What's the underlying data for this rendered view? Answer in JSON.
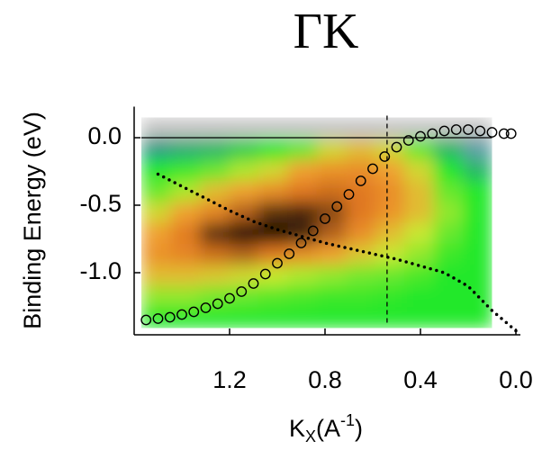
{
  "chart_data": {
    "type": "heatmap",
    "title": "ΓK",
    "x_label": {
      "main": "K",
      "sub": "X",
      "open": "(A",
      "sup": "-1",
      "close": ")"
    },
    "y_label": "Binding Energy (eV)",
    "xlim": [
      1.6,
      0.0
    ],
    "ylim": [
      -1.46,
      0.23
    ],
    "xticks": [
      1.2,
      0.8,
      0.4,
      {
        "value": 0.0,
        "label": "0.0"
      }
    ],
    "yticks": [
      {
        "value": 0.0,
        "label": "0.0"
      },
      -0.5,
      {
        "value": -1.0,
        "label": "-1.0"
      }
    ],
    "heatmap": {
      "x_range": [
        1.57,
        0.1
      ],
      "y_range": [
        0.15,
        -1.41
      ],
      "colormap": [
        {
          "value": 0,
          "color": "#c4c4c4"
        },
        {
          "value": 0.12,
          "color": "#2a8f9a"
        },
        {
          "value": 0.3,
          "color": "#22e82a"
        },
        {
          "value": 0.42,
          "color": "#c8e830"
        },
        {
          "value": 0.55,
          "color": "#f0a030"
        },
        {
          "value": 0.7,
          "color": "#e07820"
        },
        {
          "value": 0.85,
          "color": "#5a3010"
        },
        {
          "value": 1,
          "color": "#000000"
        }
      ],
      "intensity": [
        [
          0,
          0,
          0,
          0,
          0,
          0,
          0,
          0,
          0,
          0,
          0,
          0
        ],
        [
          0.15,
          0.18,
          0.2,
          0.25,
          0.3,
          0.35,
          0.45,
          0.5,
          0.45,
          0.35,
          0.2,
          0.08
        ],
        [
          0.3,
          0.32,
          0.35,
          0.4,
          0.45,
          0.55,
          0.6,
          0.62,
          0.55,
          0.45,
          0.3,
          0.2
        ],
        [
          0.35,
          0.4,
          0.5,
          0.55,
          0.62,
          0.7,
          0.72,
          0.7,
          0.62,
          0.5,
          0.35,
          0.3
        ],
        [
          0.45,
          0.55,
          0.65,
          0.75,
          0.85,
          0.88,
          0.8,
          0.7,
          0.6,
          0.5,
          0.38,
          0.3
        ],
        [
          0.55,
          0.68,
          0.85,
          0.95,
          0.97,
          0.9,
          0.75,
          0.62,
          0.5,
          0.42,
          0.35,
          0.3
        ],
        [
          0.6,
          0.65,
          0.72,
          0.75,
          0.7,
          0.62,
          0.55,
          0.48,
          0.42,
          0.38,
          0.32,
          0.3
        ],
        [
          0.5,
          0.5,
          0.48,
          0.45,
          0.42,
          0.4,
          0.38,
          0.36,
          0.35,
          0.33,
          0.3,
          0.3
        ],
        [
          0.38,
          0.38,
          0.36,
          0.35,
          0.34,
          0.33,
          0.32,
          0.32,
          0.31,
          0.3,
          0.3,
          0.3
        ],
        [
          0.3,
          0.3,
          0.3,
          0.3,
          0.3,
          0.3,
          0.3,
          0.3,
          0.3,
          0.3,
          0.3,
          0.3
        ]
      ]
    },
    "scatter": {
      "color": "#000000",
      "x": [
        1.55,
        1.5,
        1.45,
        1.4,
        1.35,
        1.3,
        1.25,
        1.2,
        1.15,
        1.1,
        1.05,
        1.0,
        0.95,
        0.9,
        0.85,
        0.8,
        0.75,
        0.7,
        0.65,
        0.6,
        0.55,
        0.5,
        0.45,
        0.4,
        0.35,
        0.3,
        0.25,
        0.2,
        0.15,
        0.1,
        0.05,
        0.02
      ],
      "y": [
        -1.35,
        -1.34,
        -1.33,
        -1.31,
        -1.29,
        -1.26,
        -1.23,
        -1.19,
        -1.14,
        -1.08,
        -1.01,
        -0.93,
        -0.86,
        -0.78,
        -0.69,
        -0.6,
        -0.51,
        -0.42,
        -0.32,
        -0.23,
        -0.14,
        -0.07,
        -0.02,
        0.01,
        0.03,
        0.05,
        0.06,
        0.06,
        0.05,
        0.04,
        0.03,
        0.03
      ]
    },
    "dotted_line": {
      "color": "#000000",
      "x": [
        1.5,
        1.4,
        1.3,
        1.2,
        1.1,
        1.0,
        0.9,
        0.8,
        0.7,
        0.6,
        0.5,
        0.4,
        0.3,
        0.2,
        0.1,
        0.0
      ],
      "y": [
        -0.27,
        -0.36,
        -0.45,
        -0.54,
        -0.62,
        -0.68,
        -0.73,
        -0.78,
        -0.82,
        -0.86,
        -0.9,
        -0.95,
        -1.0,
        -1.1,
        -1.28,
        -1.43
      ]
    },
    "vline_x": 0.54,
    "hline_y": 0.0
  }
}
